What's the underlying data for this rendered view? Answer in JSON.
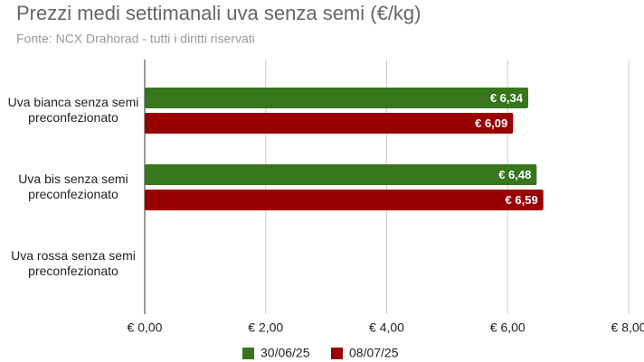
{
  "chart_data": {
    "type": "hbar",
    "title": "Prezzi medi settimanali uva senza semi (€/kg)",
    "subtitle": "Fonte: NCX Drahorad - tutti i diritti riservati",
    "categories": [
      "Uva bianca senza semi preconfezionato",
      "Uva bis senza semi preconfezionato",
      "Uva rossa senza semi preconfezionato"
    ],
    "series": [
      {
        "name": "30/06/25",
        "color": "#38761d",
        "values": [
          6.34,
          6.48,
          null
        ],
        "value_labels": [
          "€ 6,34",
          "€ 6,48",
          null
        ]
      },
      {
        "name": "08/07/25",
        "color": "#990000",
        "values": [
          6.09,
          6.59,
          null
        ],
        "value_labels": [
          "€ 6,09",
          "€ 6,59",
          null
        ]
      }
    ],
    "xlim": [
      0,
      8
    ],
    "xticks": [
      {
        "value": 0,
        "label": "€ 0,00"
      },
      {
        "value": 2,
        "label": "€ 2,00"
      },
      {
        "value": 4,
        "label": "€ 4,00"
      },
      {
        "value": 6,
        "label": "€ 6,00"
      },
      {
        "value": 8,
        "label": "€ 8,00"
      }
    ],
    "grid": true
  }
}
